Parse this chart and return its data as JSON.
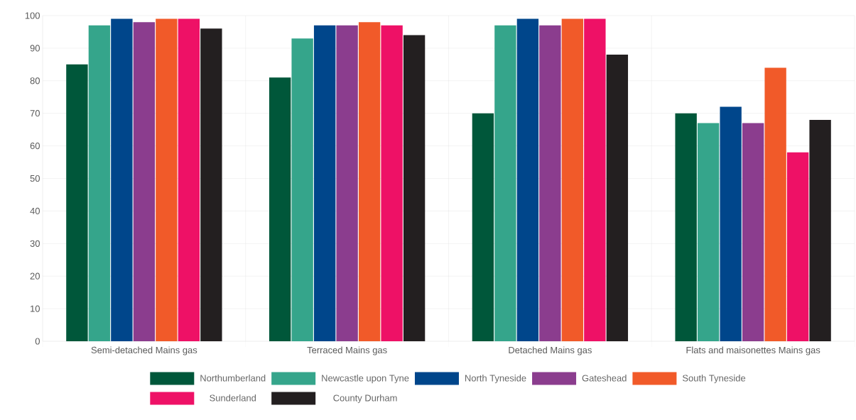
{
  "chart_data": {
    "type": "bar",
    "categories": [
      "Semi-detached Mains gas",
      "Terraced Mains gas",
      "Detached Mains gas",
      "Flats and maisonettes Mains gas"
    ],
    "series": [
      {
        "name": "Northumberland",
        "color": "#00573a",
        "values": [
          85,
          81,
          70,
          70
        ]
      },
      {
        "name": "Newcastle upon Tyne",
        "color": "#35a58b",
        "values": [
          97,
          93,
          97,
          67
        ]
      },
      {
        "name": "North Tyneside",
        "color": "#00468b",
        "values": [
          99,
          97,
          99,
          72
        ]
      },
      {
        "name": "Gateshead",
        "color": "#8b3d8e",
        "values": [
          98,
          97,
          97,
          67
        ]
      },
      {
        "name": "South Tyneside",
        "color": "#f15a29",
        "values": [
          99,
          98,
          99,
          84
        ]
      },
      {
        "name": "Sunderland",
        "color": "#ee1166",
        "values": [
          99,
          97,
          99,
          58
        ]
      },
      {
        "name": "County Durham",
        "color": "#231f20",
        "values": [
          96,
          94,
          88,
          68
        ]
      }
    ],
    "ylim": [
      0,
      100
    ],
    "yticks": [
      0,
      10,
      20,
      30,
      40,
      50,
      60,
      70,
      80,
      90,
      100
    ],
    "grid": true,
    "legend": "bottom"
  }
}
